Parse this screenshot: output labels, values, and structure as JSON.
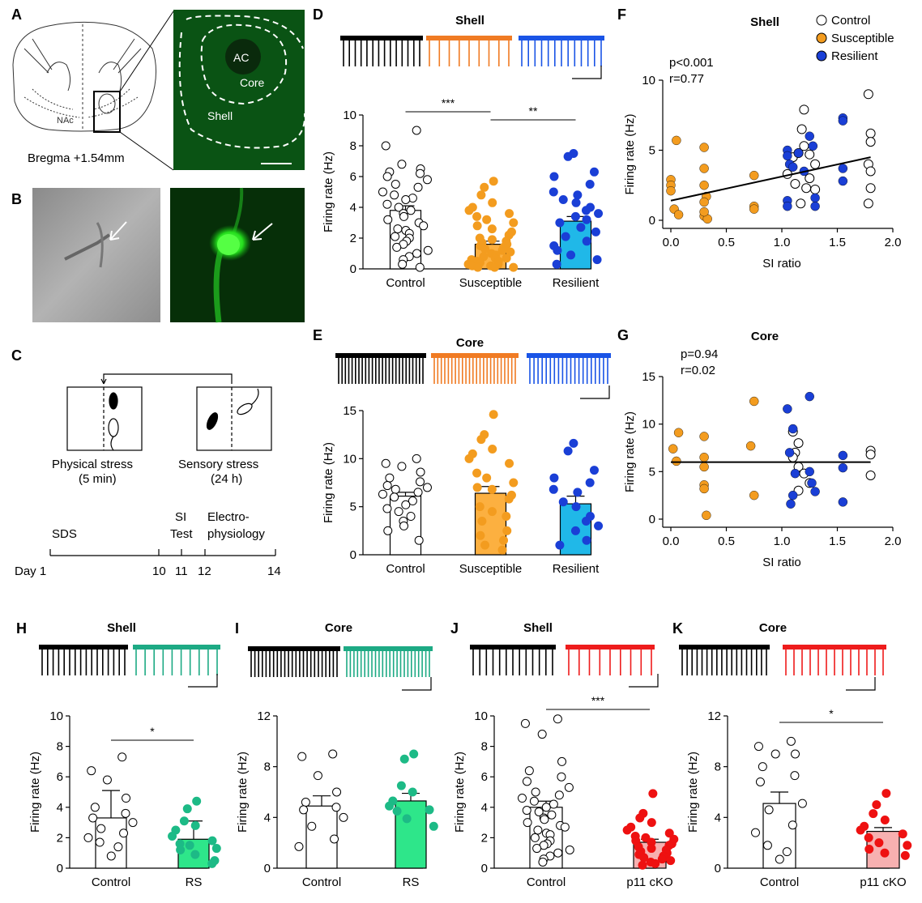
{
  "panel_letters": [
    "A",
    "B",
    "C",
    "D",
    "E",
    "F",
    "G",
    "H",
    "I",
    "J",
    "K"
  ],
  "colors": {
    "control": "#ffffff",
    "susceptible": "#f39c1f",
    "susceptible_bar": "#fcb040",
    "resilient": "#1a3fd6",
    "resilient_bar": "#20b8e8",
    "rs": "#1dba86",
    "rs_bar": "#2ee68a",
    "cko": "#ee1111",
    "cko_bar": "#f7b0b0",
    "trace_susceptible": "#f07b23",
    "trace_resilient": "#1a54e6",
    "trace_rs": "#1daa84",
    "trace_cko": "#ee1c1c",
    "fluor": "#0c6e1a"
  },
  "panel_a": {
    "labels": [
      "AC",
      "Core",
      "Shell",
      "NAc",
      "Bregma +1.54mm"
    ],
    "icon": "brain-section-diagram-icon"
  },
  "panel_b": {
    "icons": [
      "brightfield-neuron-photo",
      "fluorescent-neuron-photo"
    ]
  },
  "panel_c": {
    "stress": [
      "Physical stress",
      "(5 min)",
      "Sensory stress",
      "(24 h)"
    ],
    "timeline_labels": [
      "SDS",
      "SI",
      "Test",
      "Electro-",
      "physiology"
    ],
    "days": [
      "Day 1",
      "10",
      "11",
      "12",
      "14"
    ],
    "icon": "mouse-cage-icon"
  },
  "charts": [
    {
      "type": "bar",
      "title": "Shell",
      "ylabel": "Firing rate (Hz)",
      "ylim": [
        0,
        10
      ],
      "yticks": [
        0,
        2,
        4,
        6,
        8,
        10
      ],
      "categories": [
        "Control",
        "Susceptible",
        "Resilient"
      ],
      "values": [
        3.8,
        1.6,
        3.1
      ],
      "sem": [
        0.3,
        0.2,
        0.3
      ],
      "points": [
        [
          9.0,
          8.0,
          6.8,
          6.5,
          6.3,
          6.2,
          6.0,
          5.8,
          5.5,
          5.3,
          5.0,
          4.8,
          4.6,
          4.5,
          4.2,
          4.0,
          3.8,
          3.6,
          3.4,
          3.2,
          3.0,
          2.8,
          2.6,
          2.5,
          2.3,
          2.1,
          2.0,
          1.8,
          1.6,
          1.4,
          1.2,
          1.0,
          0.8,
          0.6,
          0.3,
          0.1
        ],
        [
          5.7,
          5.3,
          4.8,
          4.3,
          4.0,
          3.8,
          3.6,
          3.4,
          3.2,
          3.0,
          2.8,
          2.6,
          2.4,
          2.2,
          2.0,
          1.9,
          1.8,
          1.7,
          1.6,
          1.5,
          1.4,
          1.3,
          1.2,
          1.1,
          1.0,
          0.9,
          0.8,
          0.7,
          0.7,
          0.6,
          0.5,
          0.5,
          0.4,
          0.3,
          0.3,
          0.2,
          0.2,
          0.1,
          0.1,
          0.1
        ],
        [
          7.5,
          7.3,
          6.3,
          6.0,
          5.5,
          5.0,
          4.8,
          4.5,
          4.3,
          4.0,
          3.8,
          3.6,
          3.4,
          3.2,
          3.0,
          2.7,
          2.4,
          2.1,
          1.8,
          1.5,
          1.2,
          0.9,
          0.6,
          0.3
        ]
      ],
      "sig": [
        {
          "from": 0,
          "to": 1,
          "label": "***"
        },
        {
          "from": 1,
          "to": 2,
          "label": "**"
        }
      ]
    },
    {
      "type": "bar",
      "title": "Core",
      "ylabel": "Firing rate (Hz)",
      "ylim": [
        0,
        15
      ],
      "yticks": [
        0,
        5,
        10,
        15
      ],
      "categories": [
        "Control",
        "Susceptible",
        "Resilient"
      ],
      "values": [
        6.1,
        6.4,
        5.3
      ],
      "sem": [
        0.4,
        0.7,
        0.8
      ],
      "points": [
        [
          10.0,
          9.5,
          9.2,
          8.6,
          8.0,
          7.6,
          7.2,
          7.0,
          6.8,
          6.5,
          6.3,
          6.0,
          5.6,
          5.2,
          4.8,
          4.5,
          4.0,
          3.5,
          3.0,
          2.5,
          1.5
        ],
        [
          14.6,
          12.5,
          12.0,
          11.0,
          10.5,
          10.0,
          9.5,
          8.5,
          8.0,
          7.5,
          7.0,
          6.8,
          6.2,
          5.8,
          5.0,
          4.5,
          4.0,
          3.5,
          2.5,
          2.0,
          1.5,
          1.0,
          0.5
        ],
        [
          11.6,
          10.8,
          8.8,
          8.0,
          7.5,
          6.8,
          6.5,
          5.5,
          5.0,
          4.0,
          3.5,
          3.0,
          2.5,
          1.5,
          1.0
        ]
      ],
      "sig": []
    },
    {
      "type": "scatter",
      "title": "Shell",
      "xlabel": "SI ratio",
      "ylabel": "Firing rate (Hz)",
      "xlim": [
        0,
        2
      ],
      "ylim": [
        0,
        10
      ],
      "xticks": [
        "0.0",
        "0.5",
        "1.0",
        "1.5",
        "2.0"
      ],
      "yticks": [
        "0",
        "5",
        "10"
      ],
      "stats": [
        "p<0.001",
        "r=0.77"
      ],
      "legend": [
        "Control",
        "Susceptible",
        "Resilient"
      ],
      "series": [
        {
          "name": "Control",
          "points": [
            [
              1.05,
              3.3
            ],
            [
              1.1,
              4.5
            ],
            [
              1.12,
              2.6
            ],
            [
              1.15,
              4.8
            ],
            [
              1.18,
              6.5
            ],
            [
              1.2,
              5.3
            ],
            [
              1.2,
              7.9
            ],
            [
              1.22,
              2.3
            ],
            [
              1.25,
              4.7
            ],
            [
              1.25,
              3.0
            ],
            [
              1.3,
              4.0
            ],
            [
              1.3,
              2.2
            ],
            [
              1.17,
              1.2
            ],
            [
              1.78,
              9.0
            ],
            [
              1.8,
              6.2
            ],
            [
              1.8,
              5.6
            ],
            [
              1.78,
              4.0
            ],
            [
              1.8,
              3.5
            ],
            [
              1.8,
              2.3
            ],
            [
              1.78,
              1.2
            ]
          ]
        },
        {
          "name": "Susceptible",
          "points": [
            [
              0.0,
              2.9
            ],
            [
              0.0,
              2.5
            ],
            [
              0.0,
              2.1
            ],
            [
              0.05,
              5.7
            ],
            [
              0.03,
              0.8
            ],
            [
              0.07,
              0.4
            ],
            [
              0.3,
              5.2
            ],
            [
              0.3,
              3.7
            ],
            [
              0.3,
              2.5
            ],
            [
              0.32,
              1.7
            ],
            [
              0.3,
              1.3
            ],
            [
              0.3,
              0.3
            ],
            [
              0.33,
              0.1
            ],
            [
              0.3,
              0.6
            ],
            [
              0.75,
              3.2
            ],
            [
              0.75,
              1.0
            ],
            [
              0.75,
              0.8
            ]
          ]
        },
        {
          "name": "Resilient",
          "points": [
            [
              1.05,
              5.0
            ],
            [
              1.05,
              4.6
            ],
            [
              1.07,
              4.0
            ],
            [
              1.05,
              1.4
            ],
            [
              1.05,
              1.0
            ],
            [
              1.1,
              3.8
            ],
            [
              1.15,
              4.8
            ],
            [
              1.2,
              3.5
            ],
            [
              1.25,
              6.0
            ],
            [
              1.28,
              5.3
            ],
            [
              1.3,
              1.6
            ],
            [
              1.3,
              1.0
            ],
            [
              1.55,
              7.3
            ],
            [
              1.55,
              7.1
            ],
            [
              1.55,
              3.7
            ],
            [
              1.55,
              2.8
            ]
          ]
        }
      ],
      "fit": [
        [
          0,
          1.4
        ],
        [
          1.8,
          4.5
        ]
      ]
    },
    {
      "type": "scatter",
      "title": "Core",
      "xlabel": "SI ratio",
      "ylabel": "Firing rate (Hz)",
      "xlim": [
        0,
        2
      ],
      "ylim": [
        0,
        15
      ],
      "xticks": [
        "0.0",
        "0.5",
        "1.0",
        "1.5",
        "2.0"
      ],
      "yticks": [
        "0",
        "5",
        "10",
        "15"
      ],
      "stats": [
        "p=0.94",
        "r=0.02"
      ],
      "series": [
        {
          "name": "Control",
          "points": [
            [
              1.1,
              9.2
            ],
            [
              1.15,
              8.0
            ],
            [
              1.12,
              7.0
            ],
            [
              1.1,
              6.5
            ],
            [
              1.15,
              5.5
            ],
            [
              1.2,
              4.8
            ],
            [
              1.15,
              3.0
            ],
            [
              1.25,
              3.8
            ],
            [
              1.8,
              7.2
            ],
            [
              1.8,
              6.8
            ],
            [
              1.8,
              4.6
            ]
          ]
        },
        {
          "name": "Susceptible",
          "points": [
            [
              0.02,
              7.4
            ],
            [
              0.07,
              9.1
            ],
            [
              0.05,
              6.1
            ],
            [
              0.3,
              8.7
            ],
            [
              0.3,
              6.5
            ],
            [
              0.3,
              5.5
            ],
            [
              0.3,
              3.6
            ],
            [
              0.3,
              3.2
            ],
            [
              0.32,
              0.4
            ],
            [
              0.75,
              12.4
            ],
            [
              0.72,
              7.7
            ],
            [
              0.75,
              2.5
            ]
          ]
        },
        {
          "name": "Resilient",
          "points": [
            [
              1.05,
              11.6
            ],
            [
              1.1,
              9.5
            ],
            [
              1.07,
              7.0
            ],
            [
              1.12,
              4.8
            ],
            [
              1.1,
              2.5
            ],
            [
              1.08,
              1.6
            ],
            [
              1.25,
              12.9
            ],
            [
              1.25,
              5.0
            ],
            [
              1.27,
              3.8
            ],
            [
              1.3,
              2.9
            ],
            [
              1.55,
              6.7
            ],
            [
              1.55,
              5.4
            ],
            [
              1.55,
              1.8
            ]
          ]
        }
      ],
      "fit": [
        [
          0,
          6.0
        ],
        [
          1.8,
          6.0
        ]
      ]
    },
    {
      "type": "bar",
      "title": "Shell",
      "ylabel": "Firing rate (Hz)",
      "ylim": [
        0,
        10
      ],
      "yticks": [
        0,
        2,
        4,
        6,
        8,
        10
      ],
      "categories": [
        "Control",
        "RS"
      ],
      "values": [
        3.3,
        1.9
      ],
      "sem": [
        1.8,
        1.2
      ],
      "points": [
        [
          7.3,
          6.4,
          5.8,
          4.6,
          4.0,
          3.6,
          3.3,
          3.0,
          2.6,
          2.3,
          2.0,
          1.7,
          1.4,
          0.8
        ],
        [
          4.4,
          3.9,
          3.1,
          2.8,
          2.5,
          2.1,
          1.8,
          1.6,
          1.5,
          1.3,
          1.2,
          0.9,
          0.5,
          0.3
        ]
      ],
      "sig": [
        {
          "from": 0,
          "to": 1,
          "label": "*"
        }
      ]
    },
    {
      "type": "bar",
      "title": "Core",
      "ylabel": "Firing rate (Hz)",
      "ylim": [
        0,
        12
      ],
      "yticks": [
        0,
        4,
        8,
        12
      ],
      "categories": [
        "Control",
        "RS"
      ],
      "values": [
        4.9,
        5.3
      ],
      "sem": [
        0.8,
        0.6
      ],
      "points": [
        [
          9.0,
          8.8,
          7.3,
          6.0,
          5.2,
          4.8,
          4.6,
          4.0,
          3.3,
          2.3,
          1.7
        ],
        [
          9.0,
          8.6,
          6.5,
          6.0,
          5.3,
          4.9,
          4.6,
          4.5,
          3.9,
          3.3
        ]
      ],
      "sig": []
    },
    {
      "type": "bar",
      "title": "Shell",
      "ylabel": "Firing rate (Hz)",
      "ylim": [
        0,
        10
      ],
      "yticks": [
        0,
        2,
        4,
        6,
        8,
        10
      ],
      "categories": [
        "Control",
        "p11 cKO"
      ],
      "values": [
        4.0,
        1.7
      ],
      "sem": [
        0.4,
        0.2
      ],
      "points": [
        [
          9.8,
          9.5,
          8.8,
          7.0,
          6.4,
          6.0,
          5.7,
          5.3,
          5.0,
          4.8,
          4.6,
          4.4,
          4.2,
          4.0,
          3.8,
          3.7,
          3.5,
          3.3,
          3.2,
          3.0,
          2.8,
          2.7,
          2.5,
          2.3,
          2.2,
          2.0,
          1.8,
          1.6,
          1.5,
          1.3,
          1.2,
          1.0,
          0.8,
          0.6,
          0.4
        ],
        [
          4.9,
          3.6,
          3.3,
          3.0,
          2.7,
          2.5,
          2.3,
          2.1,
          2.0,
          1.9,
          1.8,
          1.7,
          1.6,
          1.5,
          1.4,
          1.3,
          1.2,
          1.1,
          1.0,
          0.9,
          0.8,
          0.7,
          0.6,
          0.5,
          0.4,
          0.3,
          0.2
        ]
      ],
      "sig": [
        {
          "from": 0,
          "to": 1,
          "label": "***"
        }
      ]
    },
    {
      "type": "bar",
      "title": "Core",
      "ylabel": "Firing rate (Hz)",
      "ylim": [
        0,
        12
      ],
      "yticks": [
        0,
        4,
        8,
        12
      ],
      "categories": [
        "Control",
        "p11 cKO"
      ],
      "values": [
        5.1,
        2.9
      ],
      "sem": [
        0.9,
        0.3
      ],
      "points": [
        [
          10.0,
          9.6,
          9.0,
          9.0,
          8.0,
          7.3,
          6.8,
          5.1,
          4.6,
          3.4,
          2.8,
          1.8,
          1.3,
          0.7
        ],
        [
          5.9,
          5.0,
          4.3,
          3.8,
          3.3,
          3.0,
          2.7,
          2.4,
          2.0,
          1.8,
          1.5,
          1.2,
          1.0
        ]
      ],
      "sig": [
        {
          "from": 0,
          "to": 1,
          "label": "*"
        }
      ]
    }
  ]
}
